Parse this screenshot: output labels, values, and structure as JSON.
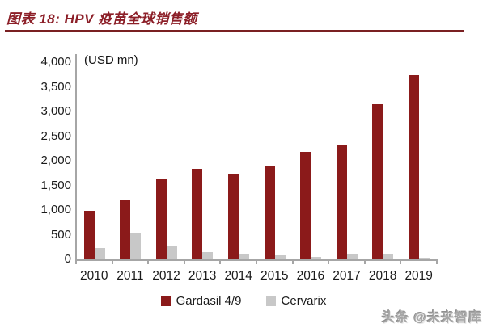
{
  "header": {
    "title": "图表 18: HPV 疫苗全球销售额"
  },
  "chart_data": {
    "type": "bar",
    "title": "图表 18: HPV 疫苗全球销售额",
    "unit_label": "(USD mn)",
    "categories": [
      "2010",
      "2011",
      "2012",
      "2013",
      "2014",
      "2015",
      "2016",
      "2017",
      "2018",
      "2019"
    ],
    "series": [
      {
        "name": "Gardasil 4/9",
        "color": "#8B1A1A",
        "values": [
          988,
          1209,
          1631,
          1831,
          1738,
          1908,
          2173,
          2308,
          3151,
          3737
        ]
      },
      {
        "name": "Cervarix",
        "color": "#C8C8C8",
        "values": [
          225,
          520,
          260,
          150,
          120,
          80,
          55,
          95,
          110,
          35
        ]
      }
    ],
    "ylim": [
      0,
      4000
    ],
    "ytick_labels": [
      "4,000",
      "3,500",
      "3,000",
      "2,500",
      "2,000",
      "1,500",
      "1,000",
      "500",
      "0"
    ],
    "ytick_values": [
      4000,
      3500,
      3000,
      2500,
      2000,
      1500,
      1000,
      500,
      0
    ],
    "grid": false,
    "legend_position": "bottom"
  },
  "watermark": {
    "text": "头条 @未来智库"
  },
  "colors": {
    "title_red": "#8C1F28",
    "rule_red": "#7A2022",
    "axis_gray": "#A6A6A6",
    "text": "#1a1a1a",
    "watermark_gray": "#a6a6a6"
  }
}
